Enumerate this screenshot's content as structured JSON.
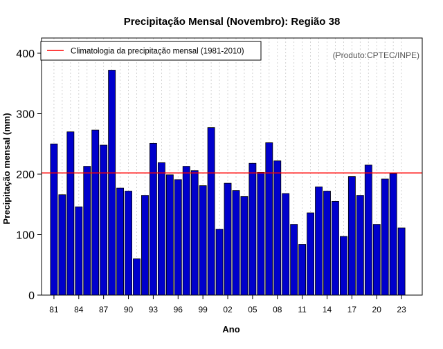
{
  "chart_data": {
    "type": "bar",
    "title": "Precipitação Mensal (Novembro): Região 38",
    "xlabel": "Ano",
    "ylabel": "Precipitação mensal (mm)",
    "ylim": [
      0,
      420
    ],
    "yticks": [
      0,
      100,
      200,
      300,
      400
    ],
    "xtick_labels": [
      "81",
      "84",
      "87",
      "90",
      "93",
      "96",
      "99",
      "02",
      "05",
      "08",
      "11",
      "14",
      "17",
      "20",
      "23"
    ],
    "categories": [
      "1981",
      "1982",
      "1983",
      "1984",
      "1985",
      "1986",
      "1987",
      "1988",
      "1989",
      "1990",
      "1991",
      "1992",
      "1993",
      "1994",
      "1995",
      "1996",
      "1997",
      "1998",
      "1999",
      "2000",
      "2001",
      "2002",
      "2003",
      "2004",
      "2005",
      "2006",
      "2007",
      "2008",
      "2009",
      "2010",
      "2011",
      "2012",
      "2013",
      "2014",
      "2015",
      "2016",
      "2017",
      "2018",
      "2019",
      "2020",
      "2021",
      "2022",
      "2023"
    ],
    "values": [
      250,
      166,
      270,
      146,
      213,
      273,
      248,
      372,
      177,
      172,
      60,
      165,
      251,
      219,
      199,
      191,
      213,
      206,
      181,
      277,
      109,
      185,
      173,
      163,
      218,
      203,
      252,
      222,
      168,
      117,
      84,
      136,
      179,
      172,
      155,
      97,
      196,
      165,
      215,
      117,
      192,
      201,
      111
    ],
    "climatology": 202,
    "legend": {
      "label": "Climatologia da precipitação mensal (1981-2010)",
      "position": "top-left"
    },
    "annotation": "(Produto:CPTEC/INPE)",
    "colors": {
      "bar_fill": "#0000cc",
      "bar_stroke": "#000000",
      "climatology_line": "#ff0000",
      "grid": "#c8c8c8",
      "annotation_text": "#555555"
    }
  }
}
